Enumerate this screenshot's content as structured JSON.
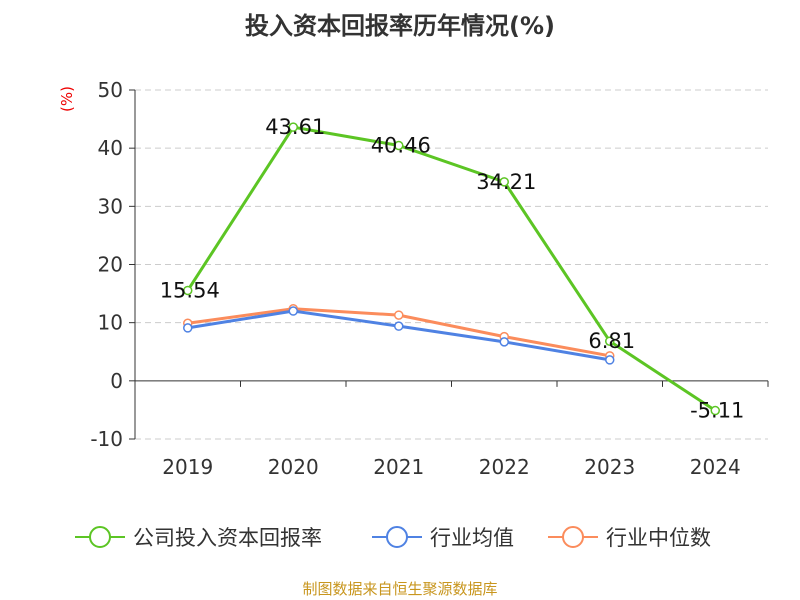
{
  "chart_data": {
    "type": "line",
    "title": "投入资本回报率历年情况(%)",
    "ylabel": "(%)",
    "categories": [
      "2019",
      "2020",
      "2021",
      "2022",
      "2023",
      "2024"
    ],
    "ylim": [
      -10,
      50
    ],
    "yticks": [
      -10,
      0,
      10,
      20,
      30,
      40,
      50
    ],
    "grid": true,
    "legend_position": "bottom",
    "series": [
      {
        "name": "公司投入资本回报率",
        "color": "#5cc524",
        "values": [
          15.54,
          43.61,
          40.46,
          34.21,
          6.81,
          -5.11
        ],
        "labels": [
          "15.54",
          "43.61",
          "40.46",
          "34.21",
          "6.81",
          "-5.11"
        ]
      },
      {
        "name": "行业均值",
        "color": "#4f82e3",
        "values": [
          9.1,
          12.0,
          9.4,
          6.7,
          3.6,
          null
        ]
      },
      {
        "name": "行业中位数",
        "color": "#fb8c5c",
        "values": [
          9.9,
          12.4,
          11.3,
          7.6,
          4.3,
          null
        ]
      }
    ]
  },
  "source": "制图数据来自恒生聚源数据库"
}
